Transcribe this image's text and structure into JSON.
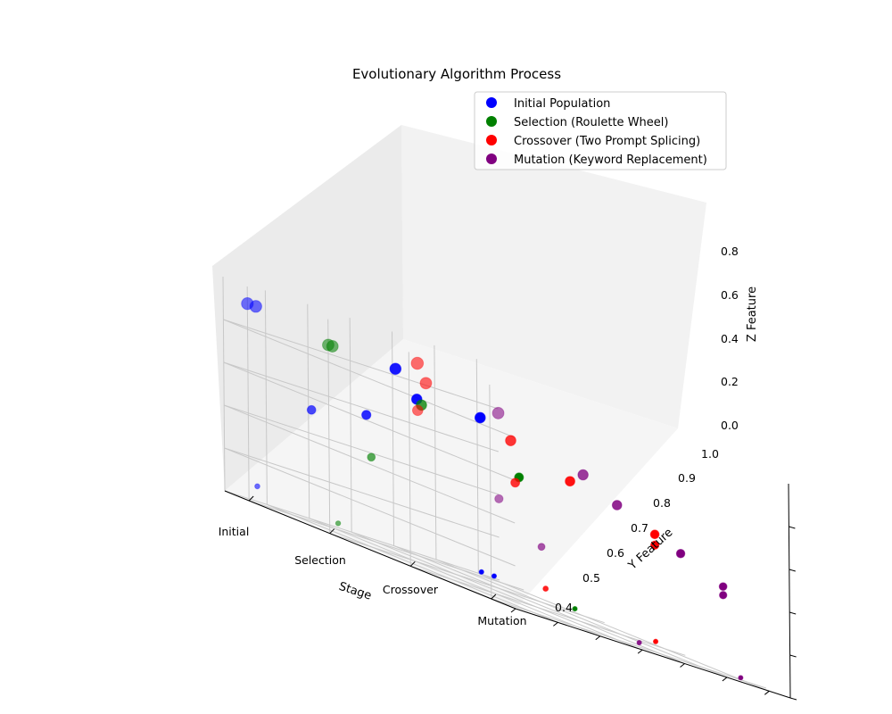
{
  "chart_data": {
    "type": "scatter",
    "title": "Evolutionary Algorithm Process",
    "xlabel": "Stage",
    "ylabel": "Y Feature",
    "zlabel": "Z Feature",
    "x_ticks": [
      "Initial",
      "Selection",
      "Crossover",
      "Mutation"
    ],
    "y_ticks": [
      "0.4",
      "0.5",
      "0.6",
      "0.7",
      "0.8",
      "0.9",
      "1.0"
    ],
    "z_ticks": [
      "0.0",
      "0.2",
      "0.4",
      "0.6",
      "0.8"
    ],
    "ylim": [
      0.35,
      1.0
    ],
    "zlim": [
      0.0,
      1.0
    ],
    "legend_position": "top-right",
    "series": [
      {
        "name": "Initial Population",
        "color": "#0000ff",
        "points": [
          {
            "x": 0,
            "y": 0.45,
            "z": 0.74
          },
          {
            "x": 0,
            "y": 0.45,
            "z": 0.02
          },
          {
            "x": 0,
            "y": 0.42,
            "z": 0.02
          },
          {
            "x": 0,
            "y": 0.65,
            "z": 0.84
          },
          {
            "x": 0,
            "y": 0.6,
            "z": 0.73
          },
          {
            "x": 0,
            "y": 0.72,
            "z": 0.58
          },
          {
            "x": 0,
            "y": 0.85,
            "z": 0.52
          },
          {
            "x": 0,
            "y": 0.98,
            "z": 0.08
          },
          {
            "x": 0,
            "y": 0.98,
            "z": 0.92
          },
          {
            "x": 0,
            "y": 1.0,
            "z": 0.92
          }
        ]
      },
      {
        "name": "Selection (Roulette Wheel)",
        "color": "#008000",
        "points": [
          {
            "x": 1,
            "y": 0.42,
            "z": 0.02
          },
          {
            "x": 1,
            "y": 0.55,
            "z": 0.55
          },
          {
            "x": 1,
            "y": 0.78,
            "z": 0.74
          },
          {
            "x": 1,
            "y": 0.9,
            "z": 0.42
          },
          {
            "x": 1,
            "y": 0.98,
            "z": 0.06
          },
          {
            "x": 1,
            "y": 0.99,
            "z": 0.88
          },
          {
            "x": 1,
            "y": 1.0,
            "z": 0.88
          }
        ]
      },
      {
        "name": "Crossover (Two Prompt Splicing)",
        "color": "#ff0000",
        "points": [
          {
            "x": 2,
            "y": 0.42,
            "z": 0.02
          },
          {
            "x": 2,
            "y": 0.42,
            "z": 0.52
          },
          {
            "x": 2,
            "y": 0.42,
            "z": 0.47
          },
          {
            "x": 2,
            "y": 0.62,
            "z": 0.64
          },
          {
            "x": 2,
            "y": 0.68,
            "z": 0.1
          },
          {
            "x": 2,
            "y": 0.75,
            "z": 0.55
          },
          {
            "x": 2,
            "y": 0.76,
            "z": 0.74
          },
          {
            "x": 2,
            "y": 0.96,
            "z": 0.88
          },
          {
            "x": 2,
            "y": 0.98,
            "z": 0.96
          },
          {
            "x": 2,
            "y": 0.98,
            "z": 0.74
          }
        ]
      },
      {
        "name": "Mutation (Keyword Replacement)",
        "color": "#800080",
        "points": [
          {
            "x": 3,
            "y": 0.41,
            "z": 0.01
          },
          {
            "x": 3,
            "y": 0.45,
            "z": 0.41
          },
          {
            "x": 3,
            "y": 0.45,
            "z": 0.37
          },
          {
            "x": 3,
            "y": 0.55,
            "z": 0.5
          },
          {
            "x": 3,
            "y": 0.65,
            "z": 0.02
          },
          {
            "x": 3,
            "y": 0.7,
            "z": 0.63
          },
          {
            "x": 3,
            "y": 0.78,
            "z": 0.72
          },
          {
            "x": 3,
            "y": 0.88,
            "z": 0.32
          },
          {
            "x": 3,
            "y": 0.98,
            "z": 0.48
          },
          {
            "x": 3,
            "y": 0.98,
            "z": 0.88
          }
        ]
      }
    ]
  }
}
